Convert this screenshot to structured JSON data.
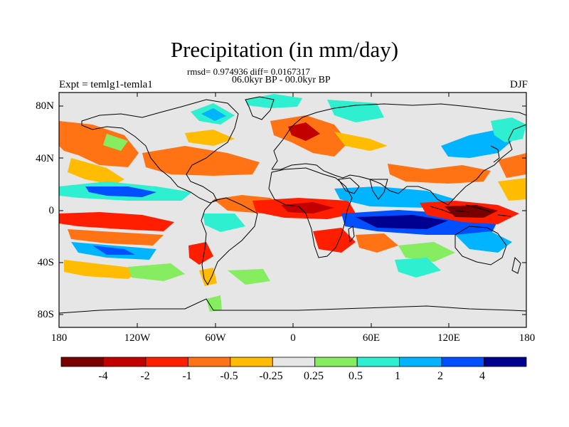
{
  "title": "Precipitation (in mm/day)",
  "stats_line": "rmsd= 0.974936 diff= 0.0167317",
  "period": "06.0kyr BP - 00.0kyr BP",
  "experiment": "Expt = temlg1-temla1",
  "season": "DJF",
  "axes": {
    "y_ticks": [
      "80N",
      "40N",
      "0",
      "40S",
      "80S"
    ],
    "x_ticks": [
      "180",
      "120W",
      "60W",
      "0",
      "60E",
      "120E",
      "180"
    ]
  },
  "colorbar": {
    "colors": [
      "#780000",
      "#c20000",
      "#ff1e00",
      "#ff7314",
      "#ffbc00",
      "#e6e6e6",
      "#86ec60",
      "#2ef0d0",
      "#00b4ff",
      "#0050ff",
      "#000090"
    ],
    "labels": [
      "-4",
      "-2",
      "-1",
      "-0.5",
      "-0.25",
      "0.25",
      "0.5",
      "1",
      "2",
      "4"
    ]
  },
  "map_background_color": "#e6e6e6"
}
